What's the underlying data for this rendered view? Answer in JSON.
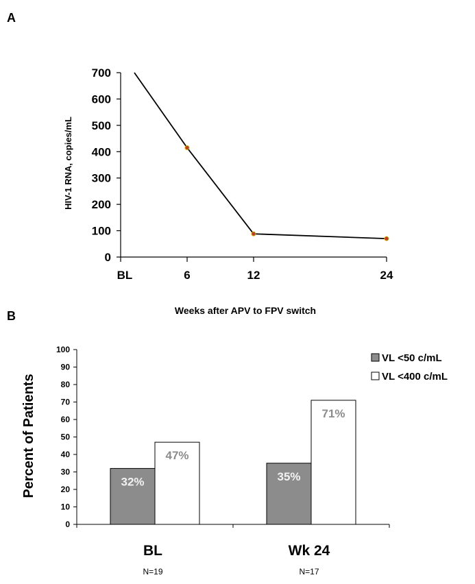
{
  "chart_data": [
    {
      "panel": "A",
      "type": "line",
      "title": "",
      "xlabel": "Weeks after APV to FPV switch",
      "ylabel": "HIV-1 RNA, copies/mL",
      "categories": [
        "BL",
        "6",
        "12",
        "24"
      ],
      "x_values": [
        0,
        6,
        12,
        24
      ],
      "ylim": [
        0,
        700
      ],
      "yticks": [
        0,
        100,
        200,
        300,
        400,
        500,
        600,
        700
      ],
      "series": [
        {
          "name": "HIV-1 RNA",
          "values": [
            null,
            415,
            88,
            70
          ]
        }
      ],
      "line_start_value_at_top": 700,
      "colors": {
        "line": "#000000",
        "marker": "#c0392b",
        "marker_edge": "#c8b400"
      }
    },
    {
      "panel": "B",
      "type": "bar",
      "title": "",
      "xlabel": "",
      "ylabel": "Percent of Patients",
      "categories": [
        "BL",
        "Wk 24"
      ],
      "group_notes": [
        "N=19",
        "N=17"
      ],
      "ylim": [
        0,
        100
      ],
      "yticks": [
        0,
        10,
        20,
        30,
        40,
        50,
        60,
        70,
        80,
        90,
        100
      ],
      "legend_position": "top-right",
      "series": [
        {
          "name": "VL <50 c/mL",
          "values": [
            32,
            35
          ],
          "labels": [
            "32%",
            "35%"
          ],
          "color": "#8c8c8c",
          "label_color": "#f2f2f2"
        },
        {
          "name": "VL <400 c/mL",
          "values": [
            47,
            71
          ],
          "labels": [
            "47%",
            "71%"
          ],
          "color": "#ffffff",
          "label_color": "#8c8c8c"
        }
      ]
    }
  ]
}
